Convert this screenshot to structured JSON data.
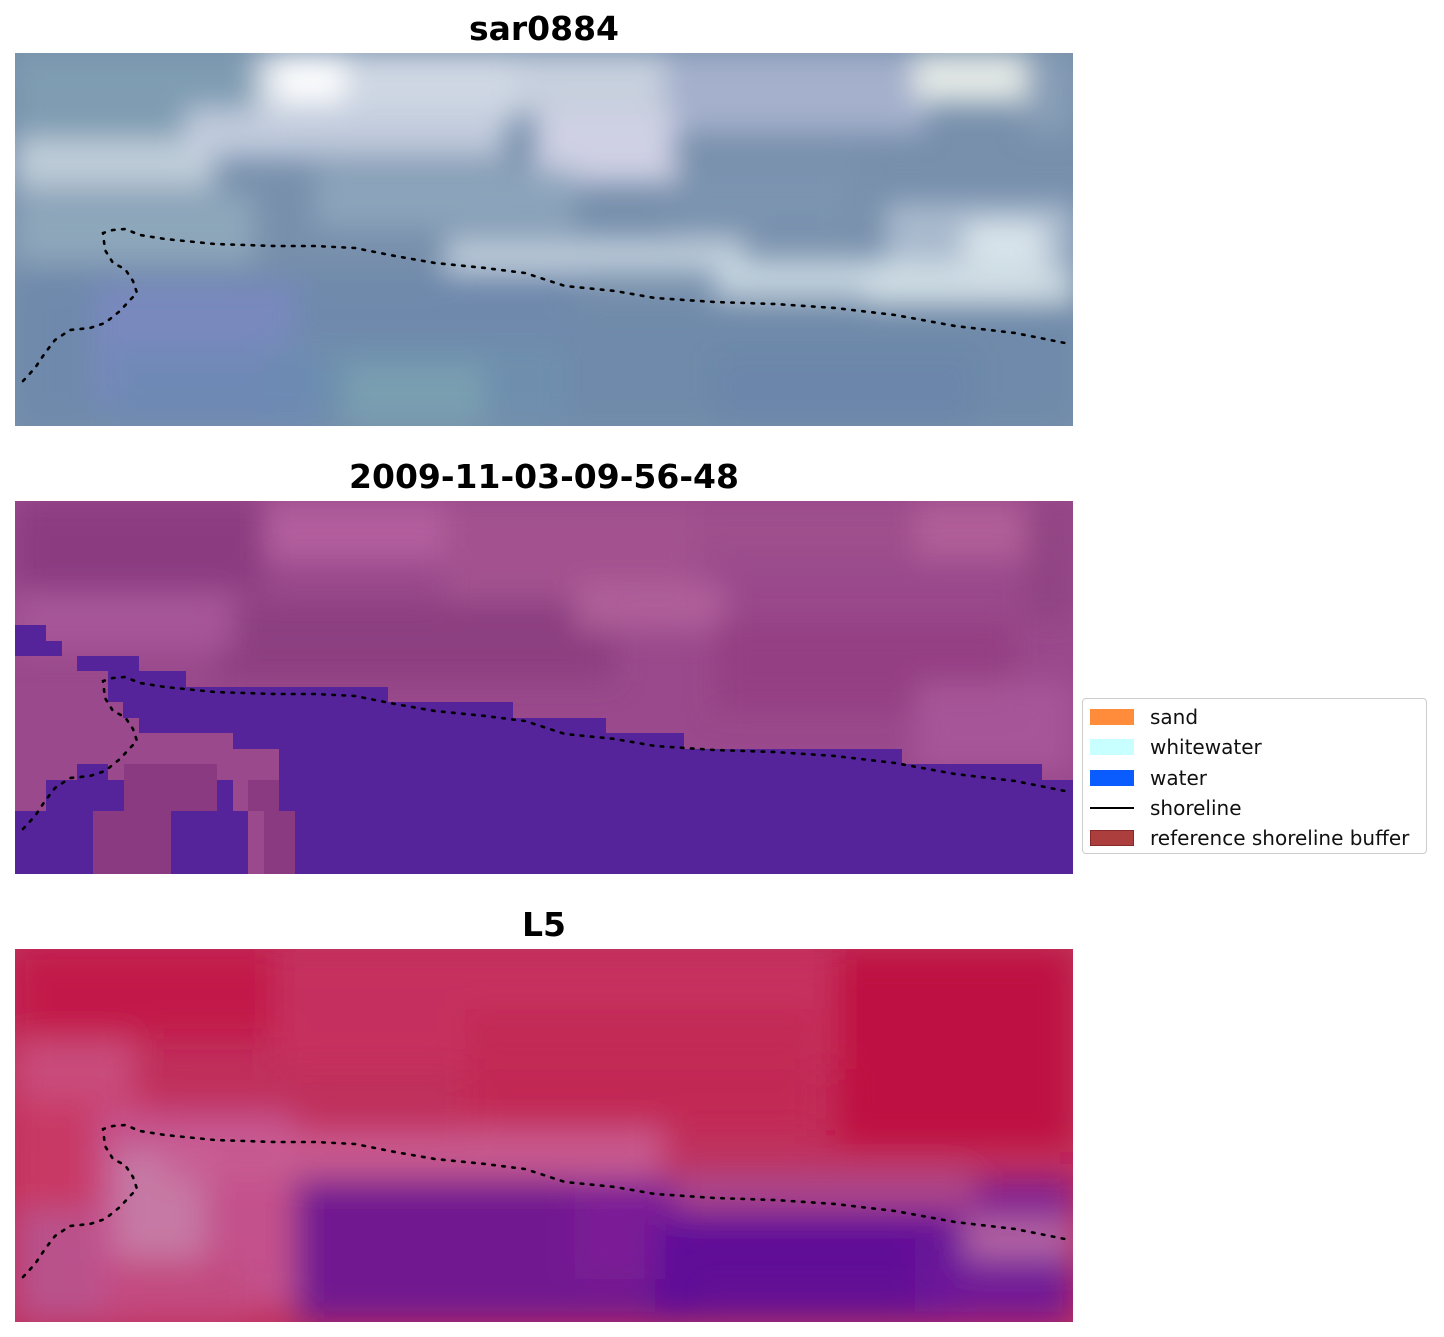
{
  "panels": [
    {
      "title": "sar0884"
    },
    {
      "title": "2009-11-03-09-56-48"
    },
    {
      "title": "L5"
    }
  ],
  "legend": {
    "items": [
      {
        "label": "sand",
        "color": "#ff8c3a",
        "kind": "patch"
      },
      {
        "label": "whitewater",
        "color": "#c8ffff",
        "kind": "patch"
      },
      {
        "label": "water",
        "color": "#0a5cff",
        "kind": "patch"
      },
      {
        "label": "shoreline",
        "color": "#000000",
        "kind": "line"
      },
      {
        "label": "reference shoreline buffer",
        "color": "#a52a2a",
        "kind": "patch"
      }
    ]
  }
}
